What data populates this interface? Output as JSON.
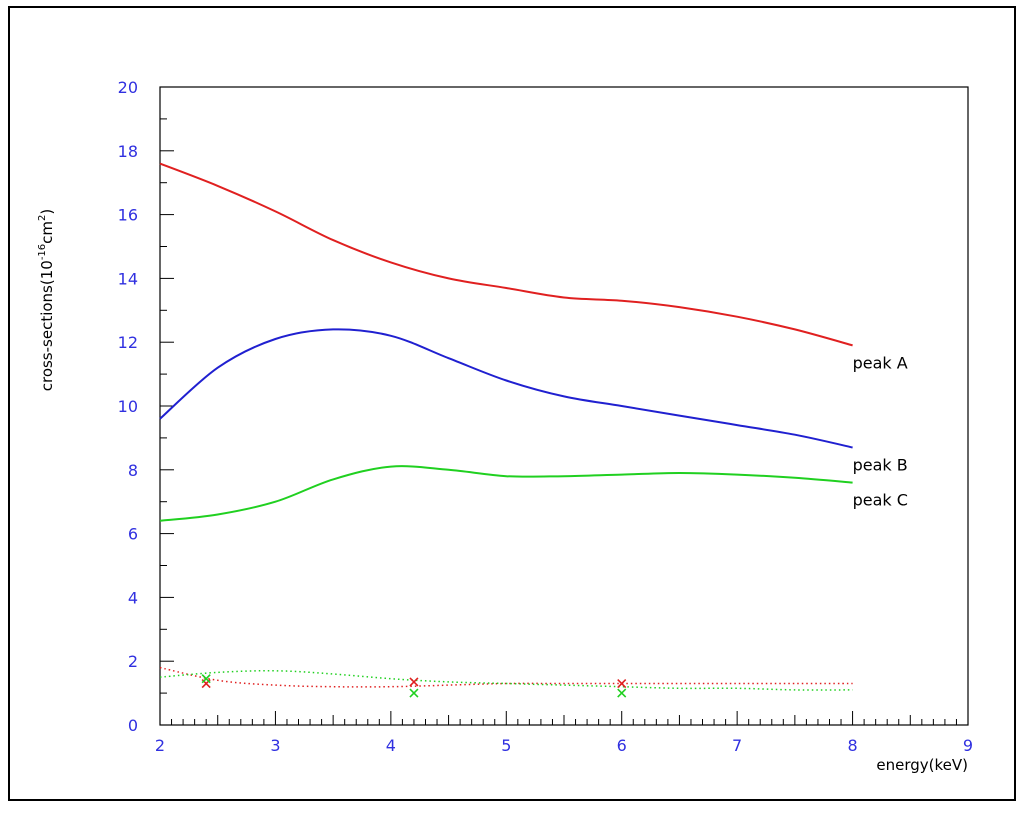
{
  "chart_data": {
    "type": "line",
    "xlabel": "energy(keV)",
    "ylabel": "cross-sections(10",
    "ylabel_exp": "-16",
    "ylabel_unit": "cm",
    "ylabel_unit_exp": "2",
    "ylabel_close": ")",
    "xlim": [
      2,
      9
    ],
    "ylim": [
      0,
      20
    ],
    "xticks": [
      "2",
      "3",
      "4",
      "5",
      "6",
      "7",
      "8",
      "9"
    ],
    "yticks": [
      "0",
      "2",
      "4",
      "6",
      "8",
      "10",
      "12",
      "14",
      "16",
      "18",
      "20"
    ],
    "grid": false,
    "series": [
      {
        "name": "peak A",
        "color": "#e02020",
        "style": "solid",
        "x": [
          2.0,
          2.5,
          3.0,
          3.5,
          4.0,
          4.5,
          5.0,
          5.5,
          6.0,
          6.5,
          7.0,
          7.5,
          8.0
        ],
        "y": [
          17.6,
          16.9,
          16.1,
          15.2,
          14.5,
          14.0,
          13.7,
          13.4,
          13.3,
          13.1,
          12.8,
          12.4,
          11.9
        ]
      },
      {
        "name": "peak B",
        "color": "#2020d0",
        "style": "solid",
        "x": [
          2.0,
          2.5,
          3.0,
          3.5,
          4.0,
          4.5,
          5.0,
          5.5,
          6.0,
          6.5,
          7.0,
          7.5,
          8.0
        ],
        "y": [
          9.6,
          11.2,
          12.1,
          12.4,
          12.2,
          11.5,
          10.8,
          10.3,
          10.0,
          9.7,
          9.4,
          9.1,
          8.7
        ]
      },
      {
        "name": "peak C",
        "color": "#20d020",
        "style": "solid",
        "x": [
          2.0,
          2.5,
          3.0,
          3.5,
          4.0,
          4.5,
          5.0,
          5.5,
          6.0,
          6.5,
          7.0,
          7.5,
          8.0
        ],
        "y": [
          6.4,
          6.6,
          7.0,
          7.7,
          8.1,
          8.0,
          7.8,
          7.8,
          7.85,
          7.9,
          7.85,
          7.75,
          7.6
        ]
      },
      {
        "color": "#e02020",
        "style": "dotted",
        "x": [
          2.0,
          2.5,
          3.0,
          3.5,
          4.0,
          4.5,
          5.0,
          5.5,
          6.0,
          6.5,
          7.0,
          7.5,
          8.0
        ],
        "y": [
          1.8,
          1.4,
          1.25,
          1.2,
          1.2,
          1.25,
          1.3,
          1.3,
          1.3,
          1.3,
          1.3,
          1.3,
          1.3
        ]
      },
      {
        "color": "#20d020",
        "style": "dotted",
        "x": [
          2.0,
          2.5,
          3.0,
          3.5,
          4.0,
          4.5,
          5.0,
          5.5,
          6.0,
          6.5,
          7.0,
          7.5,
          8.0
        ],
        "y": [
          1.5,
          1.65,
          1.7,
          1.6,
          1.45,
          1.35,
          1.3,
          1.25,
          1.2,
          1.15,
          1.15,
          1.1,
          1.1
        ]
      }
    ],
    "markers": [
      {
        "color": "#e02020",
        "x": [
          2.4,
          4.2,
          6.0
        ],
        "y": [
          1.3,
          1.35,
          1.3
        ]
      },
      {
        "color": "#20d020",
        "x": [
          2.4,
          4.2,
          6.0
        ],
        "y": [
          1.45,
          1.0,
          1.0
        ]
      }
    ]
  }
}
